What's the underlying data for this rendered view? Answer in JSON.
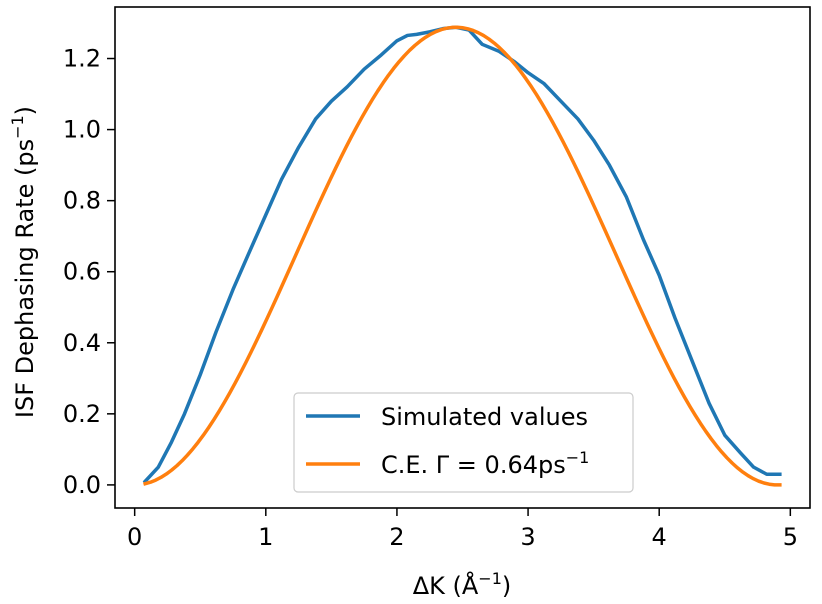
{
  "chart_data": {
    "type": "line",
    "title": "",
    "xlabel_main": "ΔK (Å",
    "xlabel_sup": "−1",
    "xlabel_end": ")",
    "ylabel_main": "ISF Dephasing Rate (ps",
    "ylabel_sup": "−1",
    "ylabel_end": ")",
    "xlim": [
      -0.15,
      5.15
    ],
    "ylim": [
      -0.065,
      1.345
    ],
    "xticks": [
      0,
      1,
      2,
      3,
      4,
      5
    ],
    "xtick_labels": [
      "0",
      "1",
      "2",
      "3",
      "4",
      "5"
    ],
    "yticks": [
      0.0,
      0.2,
      0.4,
      0.6,
      0.8,
      1.0,
      1.2
    ],
    "ytick_labels": [
      "0.0",
      "0.2",
      "0.4",
      "0.6",
      "0.8",
      "1.0",
      "1.2"
    ],
    "grid": false,
    "legend_position": "bottom-center",
    "series": [
      {
        "name": "Simulated values",
        "color": "#1f77b4",
        "x": [
          0.08,
          0.18,
          0.28,
          0.38,
          0.5,
          0.62,
          0.75,
          0.88,
          1.0,
          1.12,
          1.25,
          1.38,
          1.5,
          1.62,
          1.75,
          1.88,
          2.0,
          2.08,
          2.15,
          2.25,
          2.35,
          2.45,
          2.55,
          2.65,
          2.78,
          2.9,
          3.0,
          3.12,
          3.25,
          3.38,
          3.5,
          3.62,
          3.75,
          3.88,
          4.0,
          4.12,
          4.25,
          4.38,
          4.5,
          4.62,
          4.72,
          4.82,
          4.92
        ],
        "y": [
          0.01,
          0.05,
          0.12,
          0.2,
          0.31,
          0.43,
          0.55,
          0.66,
          0.76,
          0.86,
          0.95,
          1.03,
          1.08,
          1.12,
          1.17,
          1.21,
          1.25,
          1.265,
          1.268,
          1.275,
          1.284,
          1.288,
          1.28,
          1.24,
          1.22,
          1.19,
          1.16,
          1.13,
          1.08,
          1.03,
          0.97,
          0.9,
          0.81,
          0.69,
          0.59,
          0.47,
          0.35,
          0.23,
          0.14,
          0.09,
          0.05,
          0.03,
          0.03
        ]
      },
      {
        "name": "C.E. Γ = 0.64ps",
        "name_sup": "−1",
        "color": "#ff7f0e",
        "function": "sin_squared",
        "amplitude": 1.288,
        "period": 4.9,
        "x_start": 0.08,
        "x_end": 4.92
      }
    ]
  }
}
